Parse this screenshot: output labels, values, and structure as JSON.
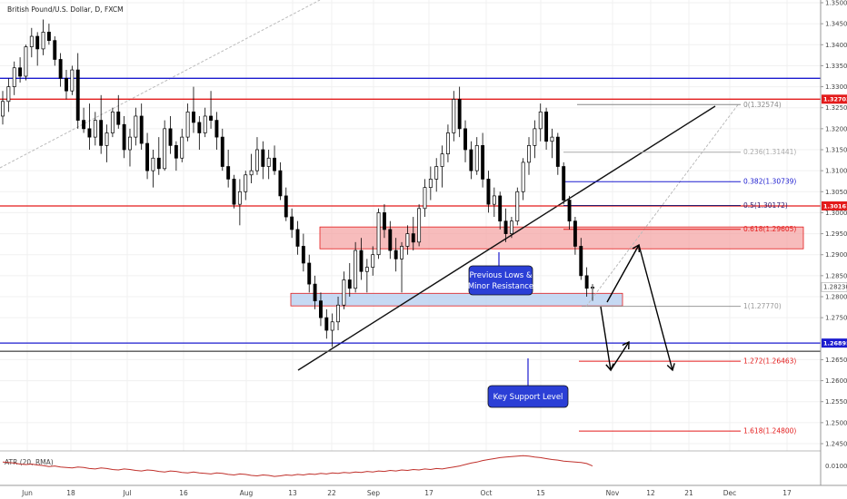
{
  "chart_data": {
    "type": "candlestick",
    "title": "British Pound/U.S. Dollar, D, FXCM",
    "y_axis": {
      "range": [
        1.243,
        1.352
      ],
      "ticks": [
        "1.35000",
        "1.34500",
        "1.34000",
        "1.33500",
        "1.33000",
        "1.32500",
        "1.32000",
        "1.31500",
        "1.31000",
        "1.30500",
        "1.30000",
        "1.29500",
        "1.29000",
        "1.28500",
        "1.28000",
        "1.27500",
        "1.26500",
        "1.26000",
        "1.25500",
        "1.25000",
        "1.24500"
      ],
      "position": "right"
    },
    "x_axis": {
      "ticks": [
        "Jun",
        "18",
        "Jul",
        "16",
        "Aug",
        "13",
        "22",
        "Sep",
        "17",
        "Oct",
        "15",
        "Nov",
        "12",
        "21",
        "Dec",
        "17"
      ]
    },
    "horizontal_lines": [
      {
        "price": 1.332,
        "color": "#1b1bcf"
      },
      {
        "price": 1.32703,
        "color": "#e31b1b",
        "tag": "1.32703"
      },
      {
        "price": 1.30161,
        "color": "#e31b1b",
        "tag": "1.30161"
      },
      {
        "price": 1.26895,
        "color": "#1b1bcf",
        "tag": "1.26895"
      },
      {
        "price": 1.267,
        "color": "#555555"
      }
    ],
    "current_price": {
      "price": 1.2823,
      "tag": "1.28230"
    },
    "fibonacci": [
      {
        "label": "0(1.32574)",
        "price": 1.32574,
        "color": "#888888"
      },
      {
        "label": "0.236(1.31441)",
        "price": 1.31441,
        "color": "#aaaaaa"
      },
      {
        "label": "0.382(1.30739)",
        "price": 1.30739,
        "color": "#1b1bcf"
      },
      {
        "label": "0.5(1.30172)",
        "price": 1.30172,
        "color": "#2a1b6e"
      },
      {
        "label": "0.618(1.29605)",
        "price": 1.29605,
        "color": "#e31b1b"
      },
      {
        "label": "1(1.27770)",
        "price": 1.2777,
        "color": "#999999"
      },
      {
        "label": "1.272(1.26463)",
        "price": 1.26463,
        "color": "#e31b1b"
      },
      {
        "label": "1.618(1.24800)",
        "price": 1.248,
        "color": "#e31b1b"
      }
    ],
    "zones": [
      {
        "name": "resistance",
        "price_top": 1.2966,
        "price_bottom": 1.2914,
        "color": "#f4a6a6"
      },
      {
        "name": "support",
        "price_top": 1.2808,
        "price_bottom": 1.2778,
        "color": "#b8d0f0"
      }
    ],
    "annotations": [
      {
        "text": "Previous Lows & Minor Resistance"
      },
      {
        "text": "Key Support Level"
      }
    ],
    "indicator": {
      "label": "ATR (20, RMA)",
      "ticks": [
        "0.0100"
      ]
    },
    "candles": [
      [
        1.323,
        1.329,
        1.321,
        1.3265
      ],
      [
        1.3265,
        1.332,
        1.324,
        1.33
      ],
      [
        1.33,
        1.336,
        1.328,
        1.3345
      ],
      [
        1.3345,
        1.337,
        1.331,
        1.3325
      ],
      [
        1.3325,
        1.34,
        1.3315,
        1.3395
      ],
      [
        1.3395,
        1.344,
        1.337,
        1.342
      ],
      [
        1.342,
        1.343,
        1.335,
        1.339
      ],
      [
        1.339,
        1.346,
        1.3375,
        1.343
      ],
      [
        1.343,
        1.345,
        1.34,
        1.341
      ],
      [
        1.341,
        1.342,
        1.335,
        1.3365
      ],
      [
        1.3365,
        1.338,
        1.33,
        1.332
      ],
      [
        1.332,
        1.334,
        1.327,
        1.329
      ],
      [
        1.329,
        1.335,
        1.328,
        1.334
      ],
      [
        1.334,
        1.338,
        1.32,
        1.322
      ],
      [
        1.322,
        1.325,
        1.319,
        1.32
      ],
      [
        1.32,
        1.326,
        1.315,
        1.318
      ],
      [
        1.318,
        1.324,
        1.316,
        1.322
      ],
      [
        1.322,
        1.328,
        1.314,
        1.316
      ],
      [
        1.316,
        1.321,
        1.312,
        1.319
      ],
      [
        1.319,
        1.325,
        1.318,
        1.324
      ],
      [
        1.324,
        1.328,
        1.32,
        1.321
      ],
      [
        1.321,
        1.323,
        1.313,
        1.315
      ],
      [
        1.315,
        1.32,
        1.311,
        1.318
      ],
      [
        1.318,
        1.325,
        1.316,
        1.323
      ],
      [
        1.323,
        1.326,
        1.315,
        1.3165
      ],
      [
        1.3165,
        1.319,
        1.308,
        1.31
      ],
      [
        1.31,
        1.315,
        1.306,
        1.313
      ],
      [
        1.313,
        1.318,
        1.309,
        1.3105
      ],
      [
        1.3105,
        1.322,
        1.31,
        1.32
      ],
      [
        1.32,
        1.323,
        1.314,
        1.316
      ],
      [
        1.316,
        1.317,
        1.31,
        1.313
      ],
      [
        1.313,
        1.32,
        1.312,
        1.318
      ],
      [
        1.318,
        1.326,
        1.317,
        1.324
      ],
      [
        1.324,
        1.33,
        1.319,
        1.3215
      ],
      [
        1.3215,
        1.323,
        1.315,
        1.319
      ],
      [
        1.319,
        1.325,
        1.318,
        1.323
      ],
      [
        1.323,
        1.329,
        1.32,
        1.322
      ],
      [
        1.322,
        1.324,
        1.315,
        1.318
      ],
      [
        1.318,
        1.32,
        1.31,
        1.311
      ],
      [
        1.311,
        1.315,
        1.306,
        1.308
      ],
      [
        1.308,
        1.309,
        1.301,
        1.302
      ],
      [
        1.302,
        1.308,
        1.297,
        1.305
      ],
      [
        1.305,
        1.31,
        1.303,
        1.309
      ],
      [
        1.309,
        1.314,
        1.307,
        1.31
      ],
      [
        1.31,
        1.318,
        1.309,
        1.315
      ],
      [
        1.315,
        1.317,
        1.308,
        1.311
      ],
      [
        1.311,
        1.315,
        1.308,
        1.313
      ],
      [
        1.313,
        1.316,
        1.309,
        1.31
      ],
      [
        1.31,
        1.312,
        1.303,
        1.304
      ],
      [
        1.304,
        1.306,
        1.298,
        1.299
      ],
      [
        1.299,
        1.301,
        1.294,
        1.296
      ],
      [
        1.296,
        1.298,
        1.29,
        1.292
      ],
      [
        1.292,
        1.295,
        1.286,
        1.288
      ],
      [
        1.288,
        1.29,
        1.281,
        1.283
      ],
      [
        1.283,
        1.285,
        1.277,
        1.279
      ],
      [
        1.279,
        1.281,
        1.273,
        1.275
      ],
      [
        1.275,
        1.277,
        1.27,
        1.272
      ],
      [
        1.272,
        1.276,
        1.268,
        1.274
      ],
      [
        1.274,
        1.28,
        1.272,
        1.278
      ],
      [
        1.278,
        1.286,
        1.277,
        1.284
      ],
      [
        1.284,
        1.288,
        1.28,
        1.282
      ],
      [
        1.282,
        1.293,
        1.281,
        1.291
      ],
      [
        1.291,
        1.294,
        1.284,
        1.286
      ],
      [
        1.286,
        1.289,
        1.281,
        1.287
      ],
      [
        1.287,
        1.292,
        1.285,
        1.29
      ],
      [
        1.29,
        1.301,
        1.289,
        1.3
      ],
      [
        1.3,
        1.302,
        1.294,
        1.296
      ],
      [
        1.296,
        1.298,
        1.289,
        1.291
      ],
      [
        1.291,
        1.294,
        1.286,
        1.289
      ],
      [
        1.289,
        1.293,
        1.281,
        1.292
      ],
      [
        1.292,
        1.297,
        1.29,
        1.295
      ],
      [
        1.295,
        1.299,
        1.291,
        1.293
      ],
      [
        1.293,
        1.302,
        1.292,
        1.301
      ],
      [
        1.301,
        1.308,
        1.299,
        1.306
      ],
      [
        1.306,
        1.311,
        1.303,
        1.308
      ],
      [
        1.308,
        1.313,
        1.305,
        1.311
      ],
      [
        1.311,
        1.316,
        1.306,
        1.314
      ],
      [
        1.314,
        1.321,
        1.312,
        1.319
      ],
      [
        1.319,
        1.329,
        1.317,
        1.327
      ],
      [
        1.327,
        1.33,
        1.318,
        1.32
      ],
      [
        1.32,
        1.322,
        1.312,
        1.315
      ],
      [
        1.315,
        1.317,
        1.308,
        1.31
      ],
      [
        1.31,
        1.318,
        1.309,
        1.316
      ],
      [
        1.316,
        1.319,
        1.306,
        1.308
      ],
      [
        1.308,
        1.31,
        1.3,
        1.302
      ],
      [
        1.302,
        1.306,
        1.299,
        1.304
      ],
      [
        1.304,
        1.305,
        1.296,
        1.298
      ],
      [
        1.298,
        1.301,
        1.293,
        1.295
      ],
      [
        1.295,
        1.299,
        1.294,
        1.298
      ],
      [
        1.298,
        1.306,
        1.297,
        1.305
      ],
      [
        1.305,
        1.313,
        1.303,
        1.312
      ],
      [
        1.312,
        1.318,
        1.309,
        1.316
      ],
      [
        1.316,
        1.322,
        1.313,
        1.32
      ],
      [
        1.32,
        1.326,
        1.317,
        1.324
      ],
      [
        1.324,
        1.325,
        1.315,
        1.317
      ],
      [
        1.317,
        1.32,
        1.313,
        1.318
      ],
      [
        1.318,
        1.319,
        1.309,
        1.311
      ],
      [
        1.311,
        1.312,
        1.302,
        1.303
      ],
      [
        1.303,
        1.304,
        1.296,
        1.298
      ],
      [
        1.298,
        1.299,
        1.29,
        1.292
      ],
      [
        1.292,
        1.294,
        1.284,
        1.285
      ],
      [
        1.285,
        1.287,
        1.28,
        1.282
      ],
      [
        1.282,
        1.283,
        1.279,
        1.2823
      ]
    ],
    "atr": [
      0.0108,
      0.0107,
      0.0106,
      0.0104,
      0.0103,
      0.0104,
      0.0102,
      0.0101,
      0.0099,
      0.01,
      0.0098,
      0.0097,
      0.0096,
      0.0098,
      0.0097,
      0.0095,
      0.0094,
      0.0096,
      0.0095,
      0.0093,
      0.0092,
      0.0094,
      0.0093,
      0.0091,
      0.009,
      0.0092,
      0.0091,
      0.0089,
      0.0088,
      0.009,
      0.0089,
      0.0087,
      0.0086,
      0.0088,
      0.0086,
      0.0085,
      0.0084,
      0.0086,
      0.0085,
      0.0083,
      0.0082,
      0.0084,
      0.0083,
      0.0081,
      0.008,
      0.0082,
      0.0081,
      0.0079,
      0.008,
      0.0082,
      0.0081,
      0.0083,
      0.0082,
      0.0084,
      0.0083,
      0.0085,
      0.0084,
      0.0086,
      0.0085,
      0.0087,
      0.0086,
      0.0088,
      0.0087,
      0.0089,
      0.0088,
      0.009,
      0.0089,
      0.0091,
      0.009,
      0.0092,
      0.0091,
      0.0093,
      0.0092,
      0.0094,
      0.0093,
      0.0095,
      0.0094,
      0.0096,
      0.0098,
      0.01,
      0.0103,
      0.0106,
      0.0108,
      0.0111,
      0.0113,
      0.0115,
      0.0117,
      0.0118,
      0.0119,
      0.012,
      0.0121,
      0.012,
      0.0118,
      0.0117,
      0.0115,
      0.0113,
      0.0112,
      0.011,
      0.0109,
      0.0108,
      0.0107,
      0.0105,
      0.01
    ],
    "up_color": "#ffffff",
    "down_color": "#000000"
  }
}
